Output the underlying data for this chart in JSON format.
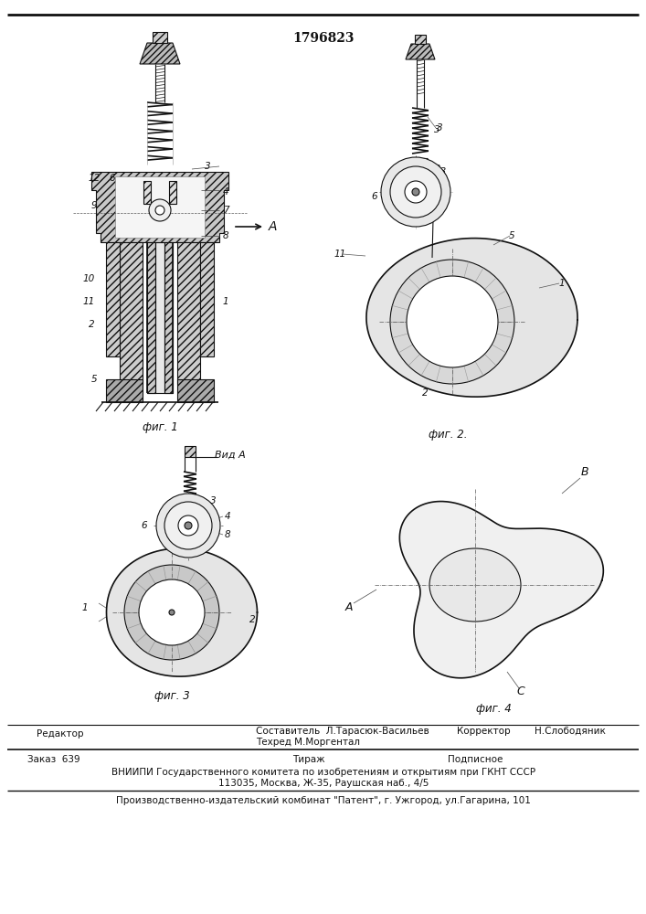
{
  "patent_number": "1796823",
  "background_color": "#ffffff",
  "line_color": "#111111",
  "fig_width": 7.07,
  "fig_height": 10.0,
  "dpi": 100,
  "footer": {
    "editor_label": "Редактор",
    "composer_label": "Составитель  Л.Тарасюк-Васильев",
    "techrep_label": "Техред М.Моргентал",
    "corrector_label": "Корректор",
    "corrector_name": "Н.Слободяник",
    "order_label": "Заказ  639",
    "tirazh_label": "Тираж",
    "podpisnoe_label": "Подписное",
    "org_line1": "ВНИИПИ Государственного комитета по изобретениям и открытиям при ГКНТ СССР",
    "org_line2": "113035, Москва, Ж-35, Раушская наб., 4/5",
    "publisher_line": "Производственно-издательский комбинат \"Патент\", г. Ужгород, ул.Гагарина, 101"
  }
}
